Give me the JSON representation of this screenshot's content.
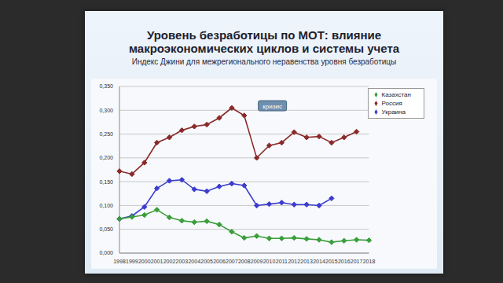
{
  "chart_data": {
    "type": "line",
    "title": "Уровень безработицы по МОТ: влияние макроэкономических циклов и системы учета",
    "subtitle": "Индекс Джини для межрегионального неравенства уровня безработицы",
    "categories": [
      "1998",
      "1999",
      "2000",
      "2001",
      "2002",
      "2003",
      "2004",
      "2005",
      "2006",
      "2007",
      "2008",
      "2009",
      "2010",
      "2011",
      "2012",
      "2013",
      "2014",
      "2015",
      "2016",
      "2017",
      "2018"
    ],
    "series": [
      {
        "name": "Россия",
        "color": "#8b2a2a",
        "marker": "diamond",
        "values": [
          0.172,
          0.166,
          0.19,
          0.232,
          0.243,
          0.258,
          0.266,
          0.27,
          0.284,
          0.305,
          0.289,
          0.2,
          0.226,
          0.232,
          0.254,
          0.243,
          0.245,
          0.232,
          0.243,
          0.255,
          null
        ]
      },
      {
        "name": "Украина",
        "color": "#3c3ccf",
        "marker": "diamond",
        "values": [
          0.072,
          0.078,
          0.097,
          0.136,
          0.152,
          0.154,
          0.134,
          0.13,
          0.14,
          0.146,
          0.142,
          0.1,
          0.103,
          0.106,
          0.102,
          0.102,
          0.1,
          0.115,
          null,
          null,
          null
        ]
      },
      {
        "name": "Казахстан",
        "color": "#3a9e3a",
        "marker": "diamond",
        "values": [
          0.072,
          0.076,
          0.08,
          0.091,
          0.075,
          0.068,
          0.065,
          0.067,
          0.06,
          0.045,
          0.032,
          0.036,
          0.031,
          0.031,
          0.032,
          0.03,
          0.028,
          0.023,
          0.026,
          0.028,
          0.027
        ]
      }
    ],
    "ylim": [
      0,
      0.35
    ],
    "yticks": [
      {
        "value": 0,
        "label": "0,000"
      },
      {
        "value": 0.05,
        "label": "0,050"
      },
      {
        "value": 0.1,
        "label": "0,100"
      },
      {
        "value": 0.15,
        "label": "0,150"
      },
      {
        "value": 0.2,
        "label": "0,200"
      },
      {
        "value": 0.25,
        "label": "0,250"
      },
      {
        "value": 0.3,
        "label": "0,300"
      },
      {
        "value": 0.35,
        "label": "0,350"
      }
    ],
    "annotations": [
      {
        "text": "кризис",
        "x": "2009"
      }
    ],
    "grid": true,
    "legend": "upper right"
  }
}
